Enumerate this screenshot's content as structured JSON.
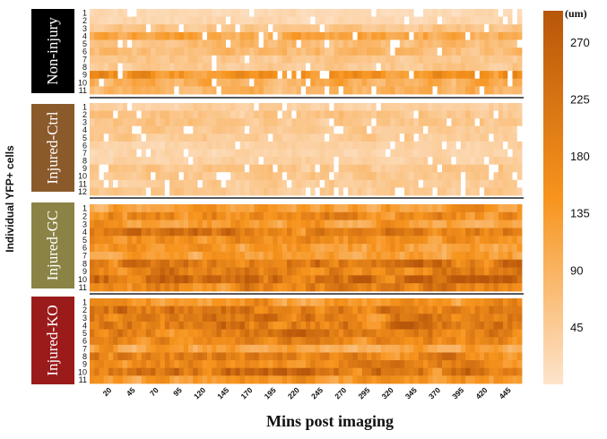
{
  "chart_data": {
    "type": "heatmap",
    "xlabel": "Mins post imaging",
    "ylabel": "Individual YFP+ cells",
    "x_ticks": [
      20,
      45,
      70,
      95,
      120,
      145,
      170,
      195,
      220,
      245,
      270,
      295,
      320,
      345,
      370,
      395,
      420,
      445
    ],
    "x_range": [
      0,
      460
    ],
    "time_step_min": 5,
    "colorbar": {
      "unit": "(um)",
      "ticks": [
        45,
        90,
        135,
        180,
        225,
        270
      ],
      "range": [
        0,
        295
      ],
      "low_color": "#fde4cc",
      "mid_color": "#f7941d",
      "high_color": "#b8560a"
    },
    "groups": [
      {
        "label": "Non-injury",
        "label_color": "#000000",
        "cells": [
          "1",
          "2",
          "3",
          "4",
          "5",
          "6",
          "7",
          "8",
          "9",
          "10",
          "11"
        ],
        "mean_values": [
          20,
          25,
          60,
          110,
          70,
          75,
          55,
          50,
          150,
          95,
          85
        ]
      },
      {
        "label": "Injured-Ctrl",
        "label_color": "#8b5a2b",
        "cells": [
          "1",
          "2",
          "3",
          "4",
          "5",
          "6",
          "7",
          "8",
          "9",
          "10",
          "11",
          "12"
        ],
        "mean_values": [
          40,
          60,
          55,
          50,
          45,
          35,
          30,
          35,
          55,
          50,
          45,
          50
        ]
      },
      {
        "label": "Injured-GC",
        "label_color": "#8b8345",
        "cells": [
          "1",
          "2",
          "3",
          "4",
          "5",
          "6",
          "7",
          "8",
          "9",
          "10",
          "11"
        ],
        "mean_values": [
          130,
          175,
          140,
          205,
          160,
          135,
          125,
          215,
          195,
          235,
          185
        ]
      },
      {
        "label": "Injured-KO",
        "label_color": "#9b1b1b",
        "cells": [
          "1",
          "2",
          "3",
          "4",
          "5",
          "6",
          "7",
          "8",
          "9",
          "10",
          "11"
        ],
        "mean_values": [
          150,
          210,
          200,
          215,
          205,
          175,
          125,
          190,
          175,
          215,
          140
        ]
      }
    ]
  }
}
